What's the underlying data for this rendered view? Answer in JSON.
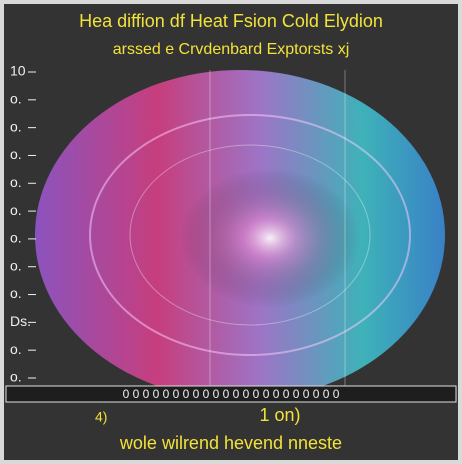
{
  "header": {
    "title": "Hea diffion df Heat Fsion Cold Elydion",
    "subtitle": "arssed e Crvdenbard Exptorsts xj"
  },
  "left_labels": [
    "10",
    "o.",
    "o.",
    "o.",
    "o.",
    "o.",
    "o.",
    "o.",
    "o.",
    "Ds.",
    "o.",
    "o."
  ],
  "axis_strip": "0 0 0 0 0 0 0 0 0 0 0 0 0 0 0 0 0 0 0 0 0 0",
  "footer": {
    "left": "4)",
    "center": "1 on)",
    "caption": "wole wilrend hevend nneste"
  }
}
